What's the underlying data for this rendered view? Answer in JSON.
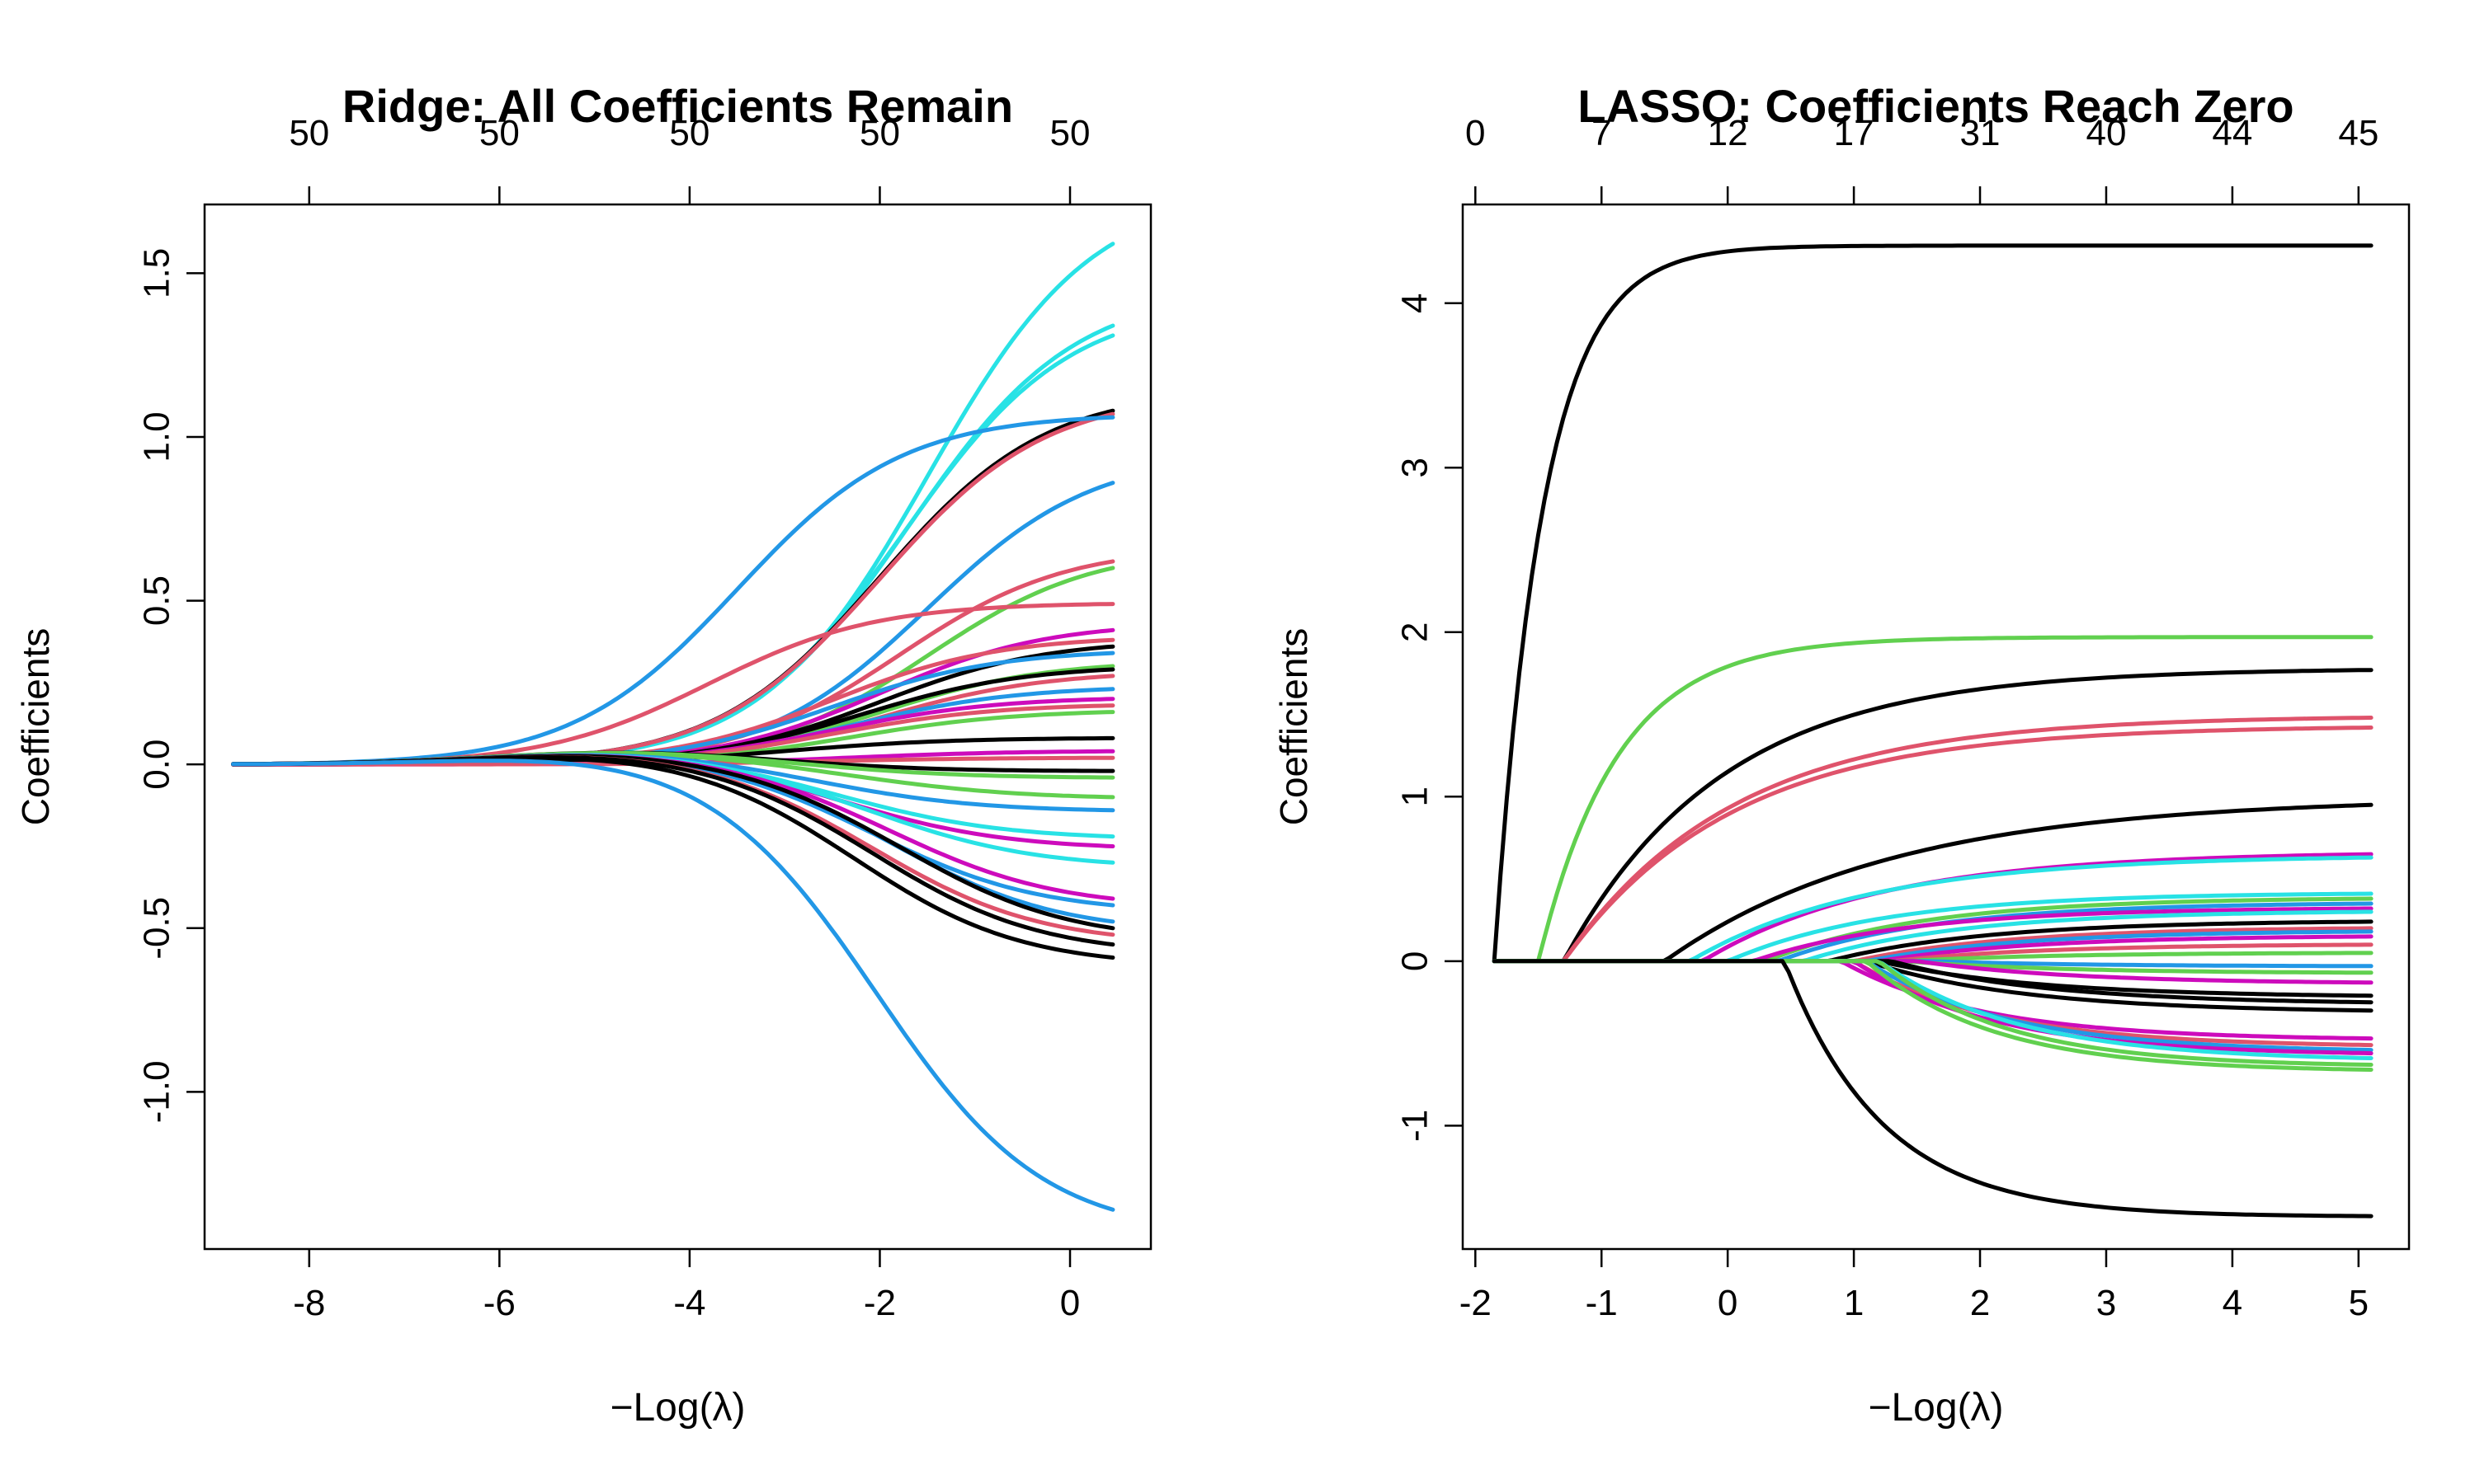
{
  "colors": [
    "#000000",
    "#DF536B",
    "#61D04F",
    "#2297E6",
    "#28E2E5",
    "#CD0BBC"
  ],
  "chart_data": [
    {
      "type": "line",
      "title": "Ridge: All Coefficients Remain",
      "xlabel": "−Log(λ)",
      "ylabel": "Coefficients",
      "xlim": [
        -9.1,
        0.85
      ],
      "ylim": [
        -1.48,
        1.71
      ],
      "x_ticks": [
        -8,
        -6,
        -4,
        -2,
        0
      ],
      "x_tick_labels": [
        "-8",
        "-6",
        "-4",
        "-2",
        "0"
      ],
      "y_ticks": [
        -1.0,
        -0.5,
        0.0,
        0.5,
        1.0,
        1.5
      ],
      "y_tick_labels": [
        "-1.0",
        "-0.5",
        "0.0",
        "0.5",
        "1.0",
        "1.5"
      ],
      "top_ticks": [
        -8,
        -6,
        -4,
        -2,
        0
      ],
      "top_tick_labels": [
        "50",
        "50",
        "50",
        "50",
        "50"
      ],
      "x_range": [
        -8.8,
        0.45
      ],
      "series": [
        {
          "color": "#28E2E5",
          "final": 1.59,
          "mid": -1.5
        },
        {
          "color": "#28E2E5",
          "final": 1.34,
          "mid": -1.7
        },
        {
          "color": "#28E2E5",
          "final": 1.31,
          "mid": -1.75
        },
        {
          "color": "#000000",
          "final": 1.08,
          "mid": -2.0
        },
        {
          "color": "#DF536B",
          "final": 1.07,
          "mid": -2.0
        },
        {
          "color": "#2297E6",
          "final": 1.06,
          "mid": -3.5
        },
        {
          "color": "#2297E6",
          "final": 0.86,
          "mid": -1.5
        },
        {
          "color": "#DF536B",
          "final": 0.62,
          "mid": -1.8
        },
        {
          "color": "#61D04F",
          "final": 0.6,
          "mid": -1.5
        },
        {
          "color": "#DF536B",
          "final": 0.49,
          "mid": -3.8
        },
        {
          "color": "#CD0BBC",
          "final": 0.41,
          "mid": -2.0
        },
        {
          "color": "#DF536B",
          "final": 0.38,
          "mid": -2.5
        },
        {
          "color": "#000000",
          "final": 0.36,
          "mid": -2.0
        },
        {
          "color": "#2297E6",
          "final": 0.34,
          "mid": -2.5
        },
        {
          "color": "#61D04F",
          "final": 0.3,
          "mid": -2.0
        },
        {
          "color": "#000000",
          "final": 0.29,
          "mid": -2.2
        },
        {
          "color": "#DF536B",
          "final": 0.27,
          "mid": -2.0
        },
        {
          "color": "#2297E6",
          "final": 0.23,
          "mid": -2.3
        },
        {
          "color": "#CD0BBC",
          "final": 0.2,
          "mid": -2.5
        },
        {
          "color": "#DF536B",
          "final": 0.18,
          "mid": -2.5
        },
        {
          "color": "#61D04F",
          "final": 0.16,
          "mid": -2.3
        },
        {
          "color": "#000000",
          "final": 0.08,
          "mid": -3.0
        },
        {
          "color": "#CD0BBC",
          "final": 0.04,
          "mid": -2.3
        },
        {
          "color": "#DF536B",
          "final": 0.02,
          "mid": -2.5
        },
        {
          "color": "#000000",
          "final": -0.02,
          "mid": -2.5
        },
        {
          "color": "#61D04F",
          "final": -0.04,
          "mid": -2.3
        },
        {
          "color": "#61D04F",
          "final": -0.1,
          "mid": -2.0
        },
        {
          "color": "#2297E6",
          "final": -0.14,
          "mid": -2.5
        },
        {
          "color": "#28E2E5",
          "final": -0.22,
          "mid": -2.3
        },
        {
          "color": "#CD0BBC",
          "final": -0.25,
          "mid": -2.3
        },
        {
          "color": "#28E2E5",
          "final": -0.3,
          "mid": -2.0
        },
        {
          "color": "#CD0BBC",
          "final": -0.41,
          "mid": -1.8
        },
        {
          "color": "#2297E6",
          "final": -0.43,
          "mid": -2.0
        },
        {
          "color": "#2297E6",
          "final": -0.48,
          "mid": -1.8
        },
        {
          "color": "#000000",
          "final": -0.5,
          "mid": -1.7
        },
        {
          "color": "#DF536B",
          "final": -0.52,
          "mid": -2.0
        },
        {
          "color": "#000000",
          "final": -0.55,
          "mid": -2.0
        },
        {
          "color": "#000000",
          "final": -0.59,
          "mid": -2.2
        },
        {
          "color": "#2297E6",
          "final": -1.36,
          "mid": -2.0
        }
      ]
    },
    {
      "type": "line",
      "title": "LASSO: Coefficients Reach Zero",
      "xlabel": "−Log(λ)",
      "ylabel": "Coefficients",
      "xlim": [
        -2.1,
        5.4
      ],
      "ylim": [
        -1.75,
        4.6
      ],
      "x_ticks": [
        -2,
        -1,
        0,
        1,
        2,
        3,
        4,
        5
      ],
      "x_tick_labels": [
        "-2",
        "-1",
        "0",
        "1",
        "2",
        "3",
        "4",
        "5"
      ],
      "y_ticks": [
        -1,
        0,
        1,
        2,
        3,
        4
      ],
      "y_tick_labels": [
        "-1",
        "0",
        "1",
        "2",
        "3",
        "4"
      ],
      "top_ticks": [
        -2,
        -1,
        0,
        1,
        2,
        3,
        4,
        5
      ],
      "top_tick_labels": [
        "0",
        "7",
        "12",
        "17",
        "31",
        "40",
        "44",
        "45"
      ],
      "x_range": [
        -1.85,
        5.1
      ],
      "series": [
        {
          "color": "#000000",
          "final": 4.35,
          "enter": -1.85,
          "rate": 2.6
        },
        {
          "color": "#61D04F",
          "final": 1.97,
          "enter": -1.5,
          "rate": 1.6
        },
        {
          "color": "#000000",
          "final": 1.77,
          "enter": -1.3,
          "rate": 0.8
        },
        {
          "color": "#DF536B",
          "final": 1.48,
          "enter": -1.3,
          "rate": 0.75
        },
        {
          "color": "#DF536B",
          "final": 1.42,
          "enter": -1.3,
          "rate": 0.75
        },
        {
          "color": "#000000",
          "final": 0.95,
          "enter": -0.5,
          "rate": 0.55
        },
        {
          "color": "#CD0BBC",
          "final": 0.65,
          "enter": -0.2,
          "rate": 0.7
        },
        {
          "color": "#28E2E5",
          "final": 0.63,
          "enter": -0.3,
          "rate": 0.7
        },
        {
          "color": "#28E2E5",
          "final": 0.41,
          "enter": 0.0,
          "rate": 0.8
        },
        {
          "color": "#61D04F",
          "final": 0.38,
          "enter": 0.3,
          "rate": 0.8
        },
        {
          "color": "#2297E6",
          "final": 0.35,
          "enter": 0.4,
          "rate": 0.8
        },
        {
          "color": "#CD0BBC",
          "final": 0.32,
          "enter": 0.2,
          "rate": 0.8
        },
        {
          "color": "#28E2E5",
          "final": 0.3,
          "enter": 0.6,
          "rate": 0.8
        },
        {
          "color": "#000000",
          "final": 0.24,
          "enter": 0.8,
          "rate": 0.8
        },
        {
          "color": "#DF536B",
          "final": 0.2,
          "enter": 1.0,
          "rate": 0.8
        },
        {
          "color": "#2297E6",
          "final": 0.18,
          "enter": 1.1,
          "rate": 0.8
        },
        {
          "color": "#CD0BBC",
          "final": 0.15,
          "enter": 1.2,
          "rate": 0.8
        },
        {
          "color": "#DF536B",
          "final": 0.1,
          "enter": 1.3,
          "rate": 0.8
        },
        {
          "color": "#61D04F",
          "final": 0.05,
          "enter": 1.4,
          "rate": 0.8
        },
        {
          "color": "#2297E6",
          "final": -0.03,
          "enter": 1.6,
          "rate": 0.8
        },
        {
          "color": "#61D04F",
          "final": -0.07,
          "enter": 1.4,
          "rate": 0.8
        },
        {
          "color": "#CD0BBC",
          "final": -0.13,
          "enter": 1.5,
          "rate": 0.8
        },
        {
          "color": "#000000",
          "final": -0.21,
          "enter": 1.2,
          "rate": 0.8
        },
        {
          "color": "#000000",
          "final": -0.25,
          "enter": 1.3,
          "rate": 0.8
        },
        {
          "color": "#000000",
          "final": -0.3,
          "enter": 1.1,
          "rate": 0.8
        },
        {
          "color": "#CD0BBC",
          "final": -0.47,
          "enter": 0.9,
          "rate": 0.9
        },
        {
          "color": "#DF536B",
          "final": -0.51,
          "enter": 1.0,
          "rate": 0.9
        },
        {
          "color": "#2297E6",
          "final": -0.54,
          "enter": 1.1,
          "rate": 0.9
        },
        {
          "color": "#CD0BBC",
          "final": -0.56,
          "enter": 1.0,
          "rate": 0.9
        },
        {
          "color": "#28E2E5",
          "final": -0.59,
          "enter": 1.2,
          "rate": 0.9
        },
        {
          "color": "#61D04F",
          "final": -0.63,
          "enter": 1.2,
          "rate": 1.0
        },
        {
          "color": "#61D04F",
          "final": -0.66,
          "enter": 1.1,
          "rate": 1.0
        },
        {
          "color": "#000000",
          "final": -1.55,
          "enter": 0.45,
          "rate": 1.3
        }
      ]
    }
  ]
}
